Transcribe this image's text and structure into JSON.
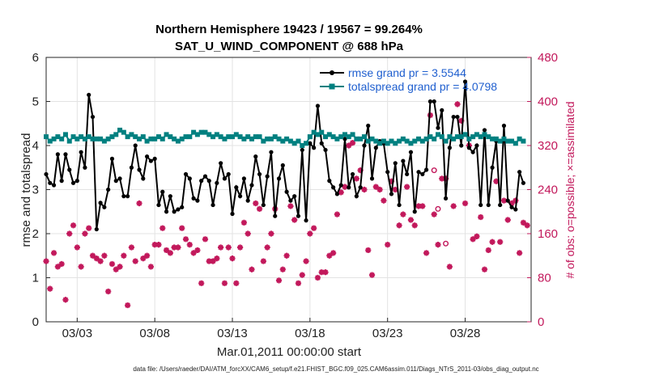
{
  "chart_data": {
    "type": "line",
    "title": "Northern Hemisphere 19423 / 19567 = 99.264%",
    "subtitle": "SAT_U_WIND_COMPONENT @ 688 hPa",
    "xlabel": "Mar.01,2011 00:00:00 start",
    "ylabel": "rmse and totalspread",
    "ylabel_right": "# of obs: o=possible; ×=assimilated",
    "footer": "data file: /Users/raeder/DAI/ATM_forcXX/CAM6_setup/f.e21.FHIST_BGC.f09_025.CAM6assim.011/Diags_NTrS_2011-03/obs_diag_output.nc",
    "xlim": [
      1,
      32.25
    ],
    "ylim": [
      0,
      6
    ],
    "ylim_right": [
      0,
      480
    ],
    "x_ticks": [
      3,
      8,
      13,
      18,
      23,
      28
    ],
    "x_tick_labels": [
      "03/03",
      "03/08",
      "03/13",
      "03/18",
      "03/23",
      "03/28"
    ],
    "y_ticks": [
      0,
      1,
      2,
      3,
      4,
      5,
      6
    ],
    "y_ticks_right": [
      0,
      80,
      160,
      240,
      320,
      400,
      480
    ],
    "grid": true,
    "legend_position": "top-right",
    "series": [
      {
        "name": "rmse grand pr = 3.5544",
        "color": "#000000",
        "axis": "left",
        "x": [
          1.0,
          1.25,
          1.5,
          1.75,
          2.0,
          2.25,
          2.5,
          2.75,
          3.0,
          3.25,
          3.5,
          3.75,
          4.0,
          4.25,
          4.5,
          4.75,
          5.0,
          5.25,
          5.5,
          5.75,
          6.0,
          6.25,
          6.5,
          6.75,
          7.0,
          7.25,
          7.5,
          7.75,
          8.0,
          8.25,
          8.5,
          8.75,
          9.0,
          9.25,
          9.5,
          9.75,
          10.0,
          10.25,
          10.5,
          10.75,
          11.0,
          11.25,
          11.5,
          11.75,
          12.0,
          12.25,
          12.5,
          12.75,
          13.0,
          13.25,
          13.5,
          13.75,
          14.0,
          14.25,
          14.5,
          14.75,
          15.0,
          15.25,
          15.5,
          15.75,
          16.0,
          16.25,
          16.5,
          16.75,
          17.0,
          17.25,
          17.5,
          17.75,
          18.0,
          18.25,
          18.5,
          18.75,
          19.0,
          19.25,
          19.5,
          19.75,
          20.0,
          20.25,
          20.5,
          20.75,
          21.0,
          21.25,
          21.5,
          21.75,
          22.0,
          22.25,
          22.5,
          22.75,
          23.0,
          23.25,
          23.5,
          23.75,
          24.0,
          24.25,
          24.5,
          24.75,
          25.0,
          25.25,
          25.5,
          25.75,
          26.0,
          26.25,
          26.5,
          26.75,
          27.0,
          27.25,
          27.5,
          27.75,
          28.0,
          28.25,
          28.5,
          28.75,
          29.0,
          29.25,
          29.5,
          29.75,
          30.0,
          30.25,
          30.5,
          30.75,
          31.0,
          31.25,
          31.5,
          31.75
        ],
        "y": [
          3.35,
          3.15,
          3.1,
          3.8,
          3.2,
          3.8,
          3.45,
          3.15,
          3.2,
          3.85,
          3.5,
          5.15,
          4.65,
          2.1,
          2.7,
          2.6,
          3.0,
          3.7,
          3.2,
          3.25,
          2.85,
          2.85,
          3.5,
          4.0,
          3.45,
          3.25,
          3.75,
          3.65,
          3.7,
          2.65,
          2.95,
          2.5,
          2.85,
          2.5,
          2.55,
          2.6,
          3.35,
          3.25,
          2.8,
          2.75,
          3.2,
          3.3,
          3.2,
          2.65,
          3.15,
          3.6,
          3.25,
          3.35,
          2.45,
          3.05,
          2.85,
          3.25,
          2.75,
          3.1,
          3.75,
          3.35,
          2.65,
          3.3,
          3.85,
          2.4,
          3.25,
          3.55,
          2.95,
          2.75,
          2.85,
          2.4,
          3.9,
          2.3,
          4.05,
          3.95,
          4.9,
          4.05,
          3.9,
          3.2,
          3.05,
          2.9,
          3.1,
          4.15,
          3.05,
          3.35,
          2.85,
          3.05,
          4.0,
          4.45,
          3.25,
          3.95,
          4.1,
          4.05,
          3.4,
          2.9,
          3.6,
          2.65,
          3.65,
          3.35,
          3.85,
          2.5,
          3.4,
          3.35,
          3.45,
          5.0,
          5.0,
          4.4,
          4.8,
          2.8,
          3.95,
          4.65,
          4.65,
          4.0,
          5.45,
          3.95,
          3.85,
          4.0,
          2.65,
          4.35,
          2.65,
          3.5,
          4.1,
          2.65,
          4.45,
          2.75,
          2.6,
          2.55,
          3.4,
          3.15
        ]
      },
      {
        "name": "totalspread grand pr = 4.0798",
        "color": "#008080",
        "axis": "left",
        "x": [
          1.0,
          1.25,
          1.5,
          1.75,
          2.0,
          2.25,
          2.5,
          2.75,
          3.0,
          3.25,
          3.5,
          3.75,
          4.0,
          4.25,
          4.5,
          4.75,
          5.0,
          5.25,
          5.5,
          5.75,
          6.0,
          6.25,
          6.5,
          6.75,
          7.0,
          7.25,
          7.5,
          7.75,
          8.0,
          8.25,
          8.5,
          8.75,
          9.0,
          9.25,
          9.5,
          9.75,
          10.0,
          10.25,
          10.5,
          10.75,
          11.0,
          11.25,
          11.5,
          11.75,
          12.0,
          12.25,
          12.5,
          12.75,
          13.0,
          13.25,
          13.5,
          13.75,
          14.0,
          14.25,
          14.5,
          14.75,
          15.0,
          15.25,
          15.5,
          15.75,
          16.0,
          16.25,
          16.5,
          16.75,
          17.0,
          17.25,
          17.5,
          17.75,
          18.0,
          18.25,
          18.5,
          18.75,
          19.0,
          19.25,
          19.5,
          19.75,
          20.0,
          20.25,
          20.5,
          20.75,
          21.0,
          21.25,
          21.5,
          21.75,
          22.0,
          22.25,
          22.5,
          22.75,
          23.0,
          23.25,
          23.5,
          23.75,
          24.0,
          24.25,
          24.5,
          24.75,
          25.0,
          25.25,
          25.5,
          25.75,
          26.0,
          26.25,
          26.5,
          26.75,
          27.0,
          27.25,
          27.5,
          27.75,
          28.0,
          28.25,
          28.5,
          28.75,
          29.0,
          29.25,
          29.5,
          29.75,
          30.0,
          30.25,
          30.5,
          30.75,
          31.0,
          31.25,
          31.5,
          31.75
        ],
        "y": [
          4.2,
          4.1,
          4.15,
          4.2,
          4.15,
          4.25,
          4.1,
          4.2,
          4.15,
          4.2,
          4.15,
          4.2,
          4.15,
          4.15,
          4.15,
          4.1,
          4.15,
          4.2,
          4.25,
          4.35,
          4.3,
          4.2,
          4.25,
          4.2,
          4.15,
          4.2,
          4.1,
          4.15,
          4.15,
          4.2,
          4.15,
          4.25,
          4.2,
          4.15,
          4.1,
          4.15,
          4.2,
          4.2,
          4.3,
          4.25,
          4.3,
          4.3,
          4.25,
          4.2,
          4.25,
          4.2,
          4.15,
          4.2,
          4.2,
          4.25,
          4.2,
          4.15,
          4.2,
          4.15,
          4.2,
          4.2,
          4.1,
          4.15,
          4.15,
          4.2,
          4.15,
          4.1,
          4.15,
          4.1,
          4.05,
          4.1,
          4.0,
          4.05,
          4.2,
          4.3,
          4.25,
          4.3,
          4.2,
          4.25,
          4.2,
          4.15,
          4.2,
          4.25,
          4.2,
          4.25,
          4.15,
          4.15,
          4.2,
          4.1,
          4.15,
          4.1,
          4.05,
          4.1,
          4.05,
          4.1,
          4.05,
          4.1,
          4.15,
          4.1,
          4.05,
          4.1,
          4.15,
          4.1,
          4.15,
          4.2,
          4.15,
          4.25,
          4.2,
          4.1,
          4.2,
          4.15,
          4.2,
          4.2,
          4.25,
          4.15,
          4.2,
          4.25,
          4.2,
          4.25,
          4.2,
          4.15,
          4.15,
          4.1,
          4.15,
          4.1,
          4.1,
          4.05,
          4.15,
          4.1
        ]
      }
    ],
    "obs_possible": {
      "name": "possible",
      "marker": "o",
      "color": "#c2185b",
      "axis": "right",
      "x": [
        26.0,
        26.25,
        26.75
      ],
      "y": [
        275,
        205,
        142
      ]
    },
    "obs_assimilated": {
      "name": "assimilated",
      "marker": "*",
      "color": "#c2185b",
      "axis": "right",
      "x": [
        1.0,
        1.25,
        1.5,
        1.75,
        2.0,
        2.25,
        2.5,
        2.75,
        3.0,
        3.25,
        3.5,
        3.75,
        4.0,
        4.25,
        4.5,
        4.75,
        5.0,
        5.25,
        5.5,
        5.75,
        6.0,
        6.25,
        6.5,
        6.75,
        7.0,
        7.25,
        7.5,
        7.75,
        8.0,
        8.25,
        8.5,
        8.75,
        9.0,
        9.25,
        9.5,
        9.75,
        10.0,
        10.25,
        10.5,
        10.75,
        11.0,
        11.25,
        11.5,
        11.75,
        12.0,
        12.25,
        12.5,
        12.75,
        13.0,
        13.25,
        13.5,
        13.75,
        14.0,
        14.25,
        14.5,
        14.75,
        15.0,
        15.25,
        15.5,
        15.75,
        16.0,
        16.25,
        16.5,
        16.75,
        17.0,
        17.25,
        17.5,
        17.75,
        18.0,
        18.25,
        18.5,
        18.75,
        19.0,
        19.25,
        19.5,
        19.75,
        20.0,
        20.25,
        20.5,
        20.75,
        21.0,
        21.25,
        21.5,
        21.75,
        22.0,
        22.25,
        22.5,
        22.75,
        23.0,
        23.25,
        23.5,
        23.75,
        24.0,
        24.25,
        24.5,
        24.75,
        25.0,
        25.25,
        25.5,
        25.75,
        26.0,
        26.25,
        26.5,
        26.75,
        27.0,
        27.25,
        27.5,
        27.75,
        28.0,
        28.25,
        28.5,
        28.75,
        29.0,
        29.25,
        29.5,
        29.75,
        30.0,
        30.25,
        30.5,
        30.75,
        31.0,
        31.25,
        31.5,
        31.75,
        32.0
      ],
      "y": [
        110,
        60,
        125,
        100,
        105,
        40,
        160,
        175,
        135,
        100,
        160,
        170,
        120,
        115,
        110,
        120,
        55,
        105,
        95,
        100,
        120,
        30,
        135,
        110,
        215,
        115,
        120,
        100,
        140,
        140,
        170,
        130,
        125,
        135,
        135,
        170,
        150,
        140,
        125,
        130,
        70,
        150,
        110,
        110,
        115,
        135,
        70,
        135,
        115,
        70,
        135,
        180,
        160,
        95,
        215,
        205,
        110,
        135,
        160,
        205,
        75,
        95,
        120,
        210,
        185,
        70,
        85,
        110,
        160,
        170,
        80,
        90,
        90,
        120,
        125,
        195,
        235,
        245,
        320,
        325,
        260,
        275,
        240,
        130,
        85,
        245,
        240,
        220,
        140,
        255,
        240,
        175,
        195,
        245,
        185,
        175,
        210,
        210,
        125,
        375,
        195,
        140,
        260,
        260,
        100,
        210,
        395,
        365,
        215,
        320,
        150,
        155,
        190,
        95,
        130,
        145,
        255,
        145,
        220,
        185,
        215,
        220,
        125,
        180,
        175
      ]
    }
  }
}
